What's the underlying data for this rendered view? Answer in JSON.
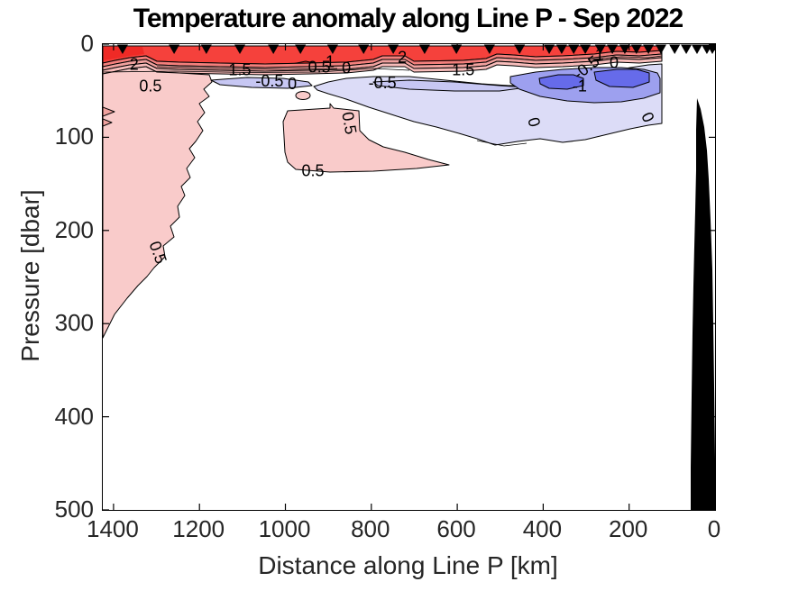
{
  "title": "Temperature anomaly along Line P - Sep 2022",
  "x_axis": {
    "label": "Distance along Line P [km]",
    "ticks": [
      1400,
      1200,
      1000,
      800,
      600,
      400,
      200,
      0
    ],
    "min": 0,
    "max": 1425,
    "direction": "reversed (1425 km at left, 0 km at right)"
  },
  "y_axis": {
    "label": "Pressure [dbar]",
    "ticks": [
      0,
      100,
      200,
      300,
      400,
      500
    ],
    "min": 0,
    "max": 500,
    "direction": "reversed (0 dbar at top, 500 dbar at bottom)"
  },
  "chart_data": {
    "type": "heatmap",
    "subtype": "filled_contour_ocean_section",
    "title": "Temperature anomaly along Line P - Sep 2022",
    "xlabel": "Distance along Line P [km]",
    "ylabel": "Pressure [dbar]",
    "xlim": [
      1425,
      0
    ],
    "ylim": [
      0,
      500
    ],
    "grid": false,
    "legend": "none (inline contour labels)",
    "contour_levels": [
      -1,
      -0.5,
      0,
      0.5,
      1,
      1.5,
      2
    ],
    "station_marker": "black downward triangle at surface",
    "station_distances_km": [
      1379,
      1259,
      1184,
      1106,
      1028,
      965,
      890,
      818,
      749,
      676,
      602,
      525,
      455,
      386,
      357,
      329,
      302,
      267,
      239,
      210,
      183,
      155,
      126,
      94,
      67,
      42,
      19,
      6
    ],
    "contour_labels": [
      {
        "text": "2",
        "km": 1352,
        "dbar": 23,
        "rot": 0
      },
      {
        "text": "0.5",
        "km": 1314,
        "dbar": 46,
        "rot": 0
      },
      {
        "text": "1.5",
        "km": 1106,
        "dbar": 29,
        "rot": 0
      },
      {
        "text": "-0.5",
        "km": 1037,
        "dbar": 41,
        "rot": 0
      },
      {
        "text": "0",
        "km": 984,
        "dbar": 44,
        "rot": 0
      },
      {
        "text": "0.5",
        "km": 921,
        "dbar": 26,
        "rot": 0
      },
      {
        "text": "1",
        "km": 896,
        "dbar": 20,
        "rot": 0
      },
      {
        "text": "0",
        "km": 858,
        "dbar": 27,
        "rot": 0
      },
      {
        "text": "2",
        "km": 728,
        "dbar": 15,
        "rot": 0
      },
      {
        "text": "-0.5",
        "km": 774,
        "dbar": 43,
        "rot": 0
      },
      {
        "text": "1.5",
        "km": 586,
        "dbar": 29,
        "rot": 0
      },
      {
        "text": "0.5",
        "km": 854,
        "dbar": 85,
        "rot": 80
      },
      {
        "text": "0.5",
        "km": 936,
        "dbar": 137,
        "rot": 0
      },
      {
        "text": "0.5",
        "km": 1299,
        "dbar": 224,
        "rot": 70
      },
      {
        "text": "-0.5",
        "km": 298,
        "dbar": 26,
        "rot": -38
      },
      {
        "text": "1",
        "km": 269,
        "dbar": 13,
        "rot": 0
      },
      {
        "text": "0",
        "km": 235,
        "dbar": 21,
        "rot": 0
      },
      {
        "text": "-1",
        "km": 315,
        "dbar": 46,
        "rot": 0
      },
      {
        "text": "0",
        "km": 424,
        "dbar": 84,
        "rot": 75
      },
      {
        "text": "0",
        "km": 159,
        "dbar": 79,
        "rot": 65
      }
    ],
    "features": [
      "Warm surface layer anomaly > 2 across almost the whole section, 0-20 dbar",
      "Strongest surface warming (> 2) at far offshore end near 1400 km",
      "Tight vertical gradient (contours 2,1.5,1,0.5,0 packed) near 20-40 dbar",
      "Positive anomaly 0.5-1 tongue from surface band down to ~330 dbar at offshore (left) end",
      "Positive anomaly 0.5-1 patch around 900-1100 km, 110-190 dbar",
      "Negative anomaly band (-0.5 to 0) along ~35-100 dbar from ~1050 km to coast",
      "Cold core < -1 centered near 250-400 km at 75-100 dbar",
      "Black bathymetry/coastal wedge from ~55 km to 0 km, ~58 dbar to bottom",
      "No contoured data shoreward of ~125 km except bathymetry"
    ],
    "colors": {
      "fill_gt_2": "#f5413c",
      "fill_deep_red": "#ef2a26",
      "fill_1p5_2": "#f37f7c",
      "fill_1_1p5": "#f0a19e",
      "fill_0p5_1_band": "#f7bcba",
      "fill_0p5_1": "#f9cbca",
      "fill_0_0p5": "#ffffff",
      "fill_m0p5_0": "#dcdcf7",
      "fill_m0p5_lens": "#c7c7f3",
      "fill_m1_m0p5": "#9da0ef",
      "fill_lt_m1": "#666bea",
      "contour_line": "#000000",
      "bathymetry": "#000000",
      "station_marker": "#000000",
      "axis_text": "#262626"
    }
  }
}
